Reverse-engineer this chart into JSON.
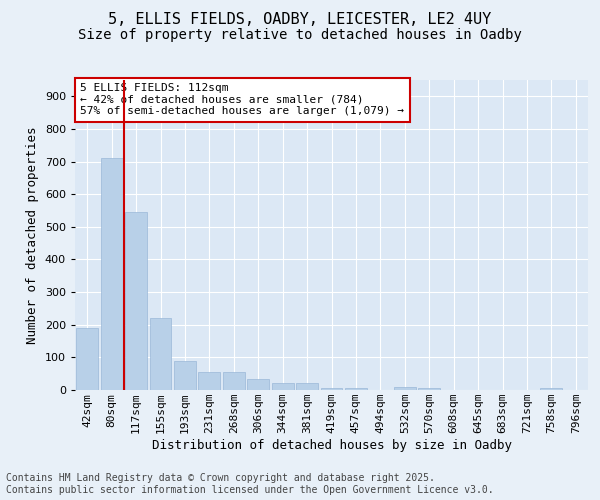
{
  "title_line1": "5, ELLIS FIELDS, OADBY, LEICESTER, LE2 4UY",
  "title_line2": "Size of property relative to detached houses in Oadby",
  "xlabel": "Distribution of detached houses by size in Oadby",
  "ylabel": "Number of detached properties",
  "bar_color": "#b8d0e8",
  "bar_edge_color": "#9ab8d8",
  "marker_line_color": "#cc0000",
  "categories": [
    "42sqm",
    "80sqm",
    "117sqm",
    "155sqm",
    "193sqm",
    "231sqm",
    "268sqm",
    "306sqm",
    "344sqm",
    "381sqm",
    "419sqm",
    "457sqm",
    "494sqm",
    "532sqm",
    "570sqm",
    "608sqm",
    "645sqm",
    "683sqm",
    "721sqm",
    "758sqm",
    "796sqm"
  ],
  "values": [
    190,
    710,
    545,
    220,
    90,
    55,
    55,
    35,
    20,
    20,
    5,
    5,
    0,
    10,
    5,
    0,
    0,
    0,
    0,
    5,
    0
  ],
  "marker_bin_index": 1,
  "annotation_text": "5 ELLIS FIELDS: 112sqm\n← 42% of detached houses are smaller (784)\n57% of semi-detached houses are larger (1,079) →",
  "ylim": [
    0,
    950
  ],
  "yticks": [
    0,
    100,
    200,
    300,
    400,
    500,
    600,
    700,
    800,
    900
  ],
  "background_color": "#e8f0f8",
  "plot_bg_color": "#dce8f5",
  "footer_text": "Contains HM Land Registry data © Crown copyright and database right 2025.\nContains public sector information licensed under the Open Government Licence v3.0.",
  "title_fontsize": 11,
  "subtitle_fontsize": 10,
  "label_fontsize": 9,
  "tick_fontsize": 8,
  "annotation_fontsize": 8,
  "footer_fontsize": 7
}
